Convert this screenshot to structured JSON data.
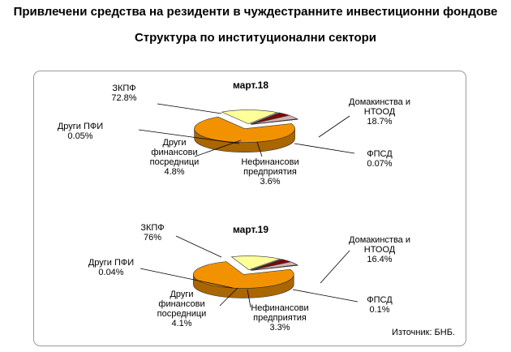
{
  "page": {
    "title": "Привлечени средства на резиденти в чуждестранните инвестиционни фондове",
    "subtitle": "Структура по институционални сектори"
  },
  "source_note": "Източник: БНБ.",
  "colors": {
    "ЗКПФ": "#F39200",
    "Домакинства и НТООД": "#FFFF99",
    "ФПСД": "#3A3A3A",
    "Нефинансови предприятия": "#8B0000",
    "Други финансови посредници": "#D9B0B0",
    "Други ПФИ": "#1A1A1A",
    "frame": "#9A9A9A"
  },
  "chart_data": [
    {
      "type": "pie",
      "style": "3d-exploded",
      "title": "март.18",
      "slices": [
        {
          "label": "ЗКПФ",
          "value": 72.8,
          "text": "72.8%"
        },
        {
          "label": "Домакинства и НТООД",
          "value": 18.7,
          "text": "18.7%"
        },
        {
          "label": "ФПСД",
          "value": 0.07,
          "text": "0.07%"
        },
        {
          "label": "Нефинансови предприятия",
          "value": 3.6,
          "text": "3.6%"
        },
        {
          "label": "Други финансови посредници",
          "value": 4.8,
          "text": "4.8%"
        },
        {
          "label": "Други ПФИ",
          "value": 0.05,
          "text": "0.05%"
        }
      ]
    },
    {
      "type": "pie",
      "style": "3d-exploded",
      "title": "март.19",
      "slices": [
        {
          "label": "ЗКПФ",
          "value": 76,
          "text": "76%"
        },
        {
          "label": "Домакинства и НТООД",
          "value": 16.4,
          "text": "16.4%"
        },
        {
          "label": "ФПСД",
          "value": 0.1,
          "text": "0.1%"
        },
        {
          "label": "Нефинансови предприятия",
          "value": 3.3,
          "text": "3.3%"
        },
        {
          "label": "Други финансови посредници",
          "value": 4.1,
          "text": "4.1%"
        },
        {
          "label": "Други ПФИ",
          "value": 0.04,
          "text": "0.04%"
        }
      ]
    }
  ]
}
